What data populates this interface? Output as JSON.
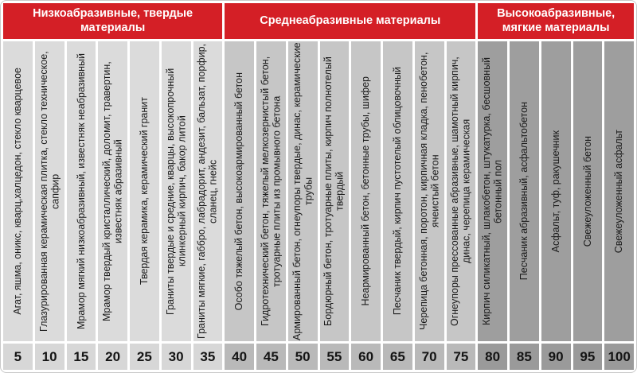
{
  "header": {
    "groups": [
      {
        "label": "Низкоабразивные, твердые материалы"
      },
      {
        "label": "Среднеабразивные материалы"
      },
      {
        "label": "Высокоабразивные, мягкие материалы"
      }
    ]
  },
  "colors": {
    "header_bg": "#d41f26",
    "header_text": "#ffffff",
    "column_bg": [
      "#dbdbdb",
      "#c6c6c6",
      "#9e9e9e"
    ],
    "value_bg": [
      "#d7d7d7",
      "#b9b9b9",
      "#9a9a9a"
    ],
    "text": "#1a1a1a",
    "frame_bg": "#ffffff"
  },
  "chart_data": {
    "type": "table",
    "group_labels": [
      "Низкоабразивные, твердые материалы",
      "Среднеабразивные материалы",
      "Высокоабразивные, мягкие материалы"
    ],
    "group_spans": [
      7,
      8,
      5
    ],
    "value_range": [
      5,
      100
    ],
    "value_step": 5,
    "columns": [
      {
        "value": 5,
        "group": 0,
        "material": "Агат, яшма, оникс, кварц,халцедон, стекло кварцевое"
      },
      {
        "value": 10,
        "group": 0,
        "material": "Глазурированная керамическая плитка, стекло техническое, сапфир"
      },
      {
        "value": 15,
        "group": 0,
        "material": "Мрамор мягкий низкоабразивный, известняк неабразивный"
      },
      {
        "value": 20,
        "group": 0,
        "material": "Мрамор твердый кристаллический, доломит, травертин, известняк абразивный"
      },
      {
        "value": 25,
        "group": 0,
        "material": "Твердая керамика, керамический гранит"
      },
      {
        "value": 30,
        "group": 0,
        "material": "Граниты твердые и средние, кварцы, высокопрочный клинкерный кирпич, бакор литой"
      },
      {
        "value": 35,
        "group": 0,
        "material": "Граниты мягкие, габбро, лабрадорит, андезит, бальзат, порфир, сланец, гнейс"
      },
      {
        "value": 40,
        "group": 1,
        "material": "Особо тяжелый бетон, высокоармированный бетон"
      },
      {
        "value": 45,
        "group": 1,
        "material": "Гидротехнический бетон, тяжелый мелкозернистый бетон, тротуарные плиты из промывного бетона"
      },
      {
        "value": 50,
        "group": 1,
        "material": "Армированный бетон, огнеупоры твердые, динас, керамические трубы"
      },
      {
        "value": 55,
        "group": 1,
        "material": "Бордюрный бетон, тротуарные плиты, кирпич полнотелый твердый"
      },
      {
        "value": 60,
        "group": 1,
        "material": "Неармированный бетон, бетонные трубы, шифер"
      },
      {
        "value": 65,
        "group": 1,
        "material": "Песчаник твердый, кирпич пустотелый облицовочный"
      },
      {
        "value": 70,
        "group": 1,
        "material": "Черепица бетонная, поротон, кирпичная кладка, пенобетон, ячеистый бетон"
      },
      {
        "value": 75,
        "group": 1,
        "material": "Огнеупоры прессованные абразивные, шамотный кирпич, динас, черепица керамическая"
      },
      {
        "value": 80,
        "group": 2,
        "material": "Кирпич силикатный, шлакобетон, штукатурка, бесшовный бетонный пол"
      },
      {
        "value": 85,
        "group": 2,
        "material": "Песчаник абразивный, асфальтобетон"
      },
      {
        "value": 90,
        "group": 2,
        "material": "Асфальт, туф, ракушечник"
      },
      {
        "value": 95,
        "group": 2,
        "material": "Свежеуложенный бетон"
      },
      {
        "value": 100,
        "group": 2,
        "material": "Свежеуложенный асфальт"
      }
    ]
  }
}
